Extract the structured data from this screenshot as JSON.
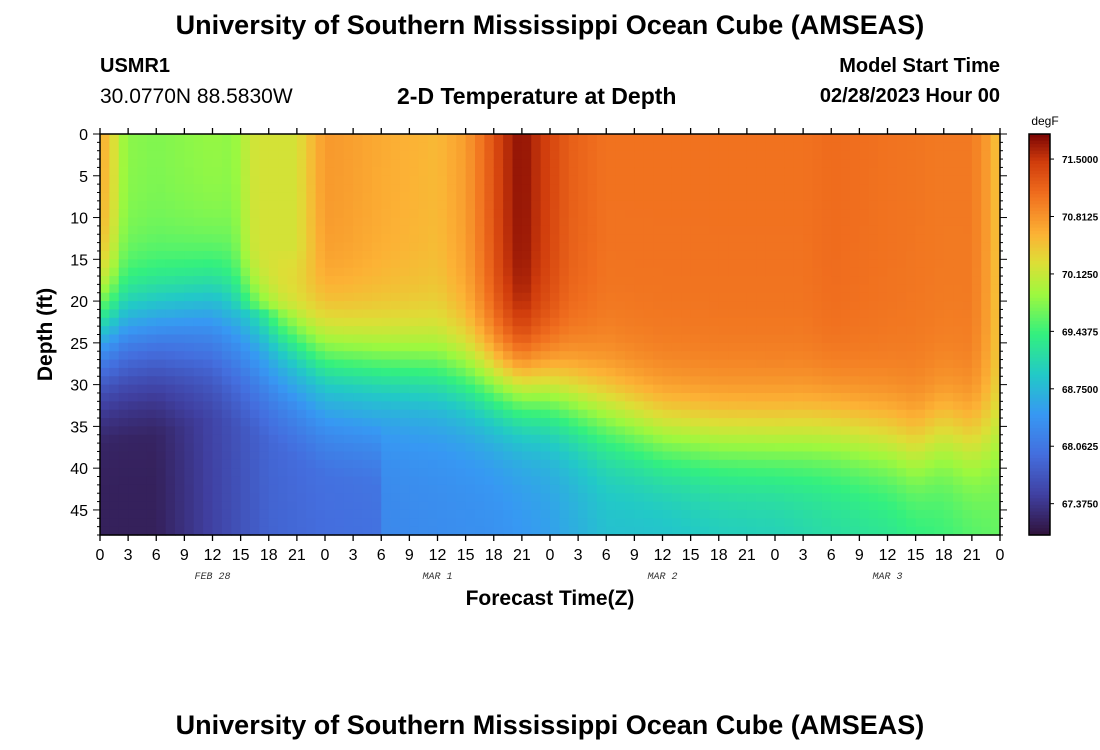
{
  "header": {
    "title": "University of Southern Mississippi Ocean Cube (AMSEAS)",
    "station_id": "USMR1",
    "coordinates": "30.0770N  88.5830W",
    "subtitle": "2-D Temperature at Depth",
    "model_start_label": "Model Start Time",
    "model_start_value": "02/28/2023 Hour 00"
  },
  "footer": {
    "title": "University of Southern Mississippi Ocean Cube (AMSEAS)"
  },
  "chart_data": {
    "type": "heatmap",
    "title": "2-D Temperature at Depth",
    "xlabel": "Forecast Time(Z)",
    "ylabel": "Depth (ft)",
    "x_unit": "hours since model start",
    "xlim": [
      0,
      96
    ],
    "ylim": [
      0,
      48
    ],
    "y_inverted": true,
    "x_tick_labels": [
      "0",
      "3",
      "6",
      "9",
      "12",
      "15",
      "18",
      "21",
      "0",
      "3",
      "6",
      "9",
      "12",
      "15",
      "18",
      "21",
      "0",
      "3",
      "6",
      "9",
      "12",
      "15",
      "18",
      "21",
      "0",
      "3",
      "6",
      "9",
      "12",
      "15",
      "18",
      "21",
      "0"
    ],
    "date_labels": [
      {
        "hour": 12,
        "label": "FEB 28"
      },
      {
        "hour": 36,
        "label": "MAR 1"
      },
      {
        "hour": 60,
        "label": "MAR 2"
      },
      {
        "hour": 84,
        "label": "MAR 3"
      }
    ],
    "y_ticks": [
      0,
      5,
      10,
      15,
      20,
      25,
      30,
      35,
      40,
      45
    ],
    "colorbar": {
      "unit": "degF",
      "min": 67.0,
      "max": 71.8,
      "tick_labels": [
        "71.5000",
        "70.8125",
        "70.1250",
        "69.4375",
        "68.7500",
        "68.0625",
        "67.3750"
      ],
      "tick_values": [
        71.5,
        70.8125,
        70.125,
        69.4375,
        68.75,
        68.0625,
        67.375
      ]
    },
    "upper_layer_temp_by_hour": [
      [
        0,
        70.6
      ],
      [
        1,
        70.5
      ],
      [
        2,
        70.0
      ],
      [
        3,
        69.8
      ],
      [
        6,
        69.75
      ],
      [
        9,
        69.8
      ],
      [
        12,
        69.85
      ],
      [
        15,
        69.8
      ],
      [
        17,
        70.2
      ],
      [
        19,
        70.7
      ],
      [
        22,
        70.8
      ],
      [
        26,
        70.75
      ],
      [
        30,
        70.65
      ],
      [
        36,
        70.55
      ],
      [
        39,
        70.75
      ],
      [
        41,
        71.1
      ],
      [
        43,
        71.5
      ],
      [
        45,
        71.75
      ],
      [
        46,
        71.6
      ],
      [
        48,
        71.4
      ],
      [
        50,
        71.2
      ],
      [
        54,
        71.05
      ],
      [
        60,
        71.05
      ],
      [
        66,
        71.05
      ],
      [
        72,
        71.05
      ],
      [
        75,
        71.05
      ],
      [
        78,
        71.1
      ],
      [
        84,
        71.05
      ],
      [
        90,
        71.0
      ],
      [
        93,
        71.0
      ],
      [
        95,
        70.7
      ],
      [
        96,
        70.4
      ]
    ],
    "thermocline_depth_ft_by_hour": [
      [
        0,
        23
      ],
      [
        6,
        22
      ],
      [
        12,
        20
      ],
      [
        18,
        22.5
      ],
      [
        24,
        27
      ],
      [
        30,
        28
      ],
      [
        36,
        28.5
      ],
      [
        42,
        30
      ],
      [
        48,
        31
      ],
      [
        54,
        33.5
      ],
      [
        60,
        36
      ],
      [
        66,
        36.5
      ],
      [
        72,
        36.5
      ],
      [
        78,
        36
      ],
      [
        84,
        37
      ],
      [
        87,
        38
      ],
      [
        90,
        36
      ],
      [
        93,
        37
      ],
      [
        96,
        36
      ]
    ],
    "deep_layer_temp_by_hour": [
      [
        0,
        67.4
      ],
      [
        6,
        67.4
      ],
      [
        12,
        67.75
      ],
      [
        18,
        68.1
      ],
      [
        24,
        68.2
      ],
      [
        30,
        68.25
      ],
      [
        36,
        68.3
      ],
      [
        42,
        68.35
      ],
      [
        48,
        68.5
      ],
      [
        54,
        68.8
      ],
      [
        60,
        68.8
      ],
      [
        66,
        68.9
      ],
      [
        72,
        68.95
      ],
      [
        78,
        69.1
      ],
      [
        84,
        69.2
      ],
      [
        90,
        69.4
      ],
      [
        96,
        69.6
      ]
    ],
    "shallow_cool_pocket": {
      "hours": [
        16,
        22
      ],
      "max_depth_ft": 21,
      "temp": 70.2
    }
  }
}
